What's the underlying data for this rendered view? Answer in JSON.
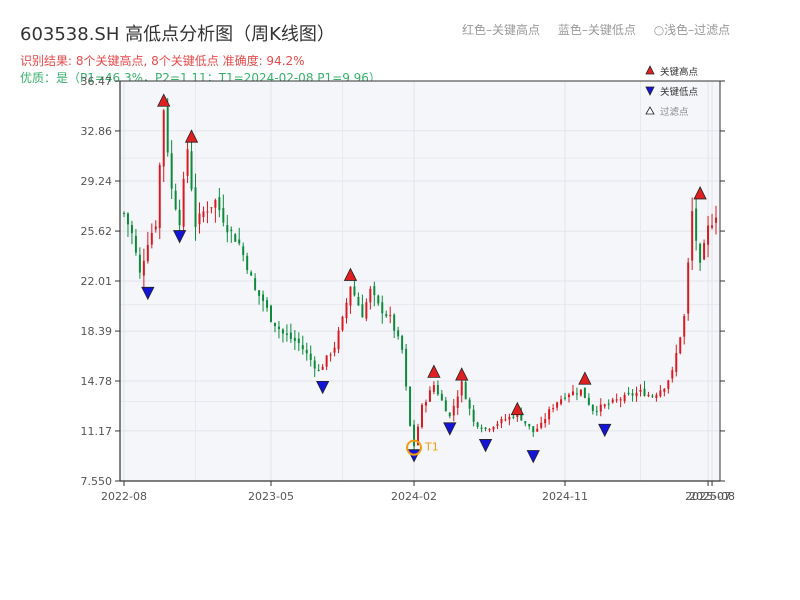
{
  "header": {
    "title": "603538.SH 高低点分析图（周K线图）",
    "legend_red": "红色–关键高点",
    "legend_blue": "蓝色–关键低点",
    "legend_circle": "○浅色–过滤点",
    "result_line": "识别结果: 8个关键高点, 8个关键低点   准确度: 94.2%",
    "quality_line": "优质：是（P1=46.3%，P2=1.11；T1=2024-02-08 P1=9.96）"
  },
  "legend": {
    "high": "关键高点",
    "low": "关键低点",
    "filtered": "过滤点"
  },
  "colors": {
    "up": "#d71920",
    "down": "#0b8a3a",
    "high_marker": "#e02020",
    "low_marker": "#1414d8",
    "t1": "#f39c12"
  },
  "chart_data": {
    "type": "candlestick",
    "ylim": [
      7.55,
      36.47
    ],
    "y_ticks": [
      "7.550",
      "11.17",
      "14.78",
      "18.39",
      "22.01",
      "25.62",
      "29.24",
      "32.86",
      "36.47"
    ],
    "y_tick_values": [
      7.55,
      11.17,
      14.78,
      18.39,
      22.01,
      25.62,
      29.24,
      32.86,
      36.47
    ],
    "x_ticks": [
      "2022-08",
      "2023-05",
      "2024-02",
      "2024-11",
      "2025-07",
      "2025-08"
    ],
    "x_tick_weeks": [
      0,
      37,
      73,
      111,
      147,
      148
    ],
    "weeks": 150,
    "anchors": [
      [
        0,
        26.9
      ],
      [
        2,
        25.4
      ],
      [
        4,
        22.5
      ],
      [
        6,
        24.9
      ],
      [
        8,
        26.2
      ],
      [
        10,
        34.5
      ],
      [
        12,
        28.6
      ],
      [
        14,
        26.4
      ],
      [
        16,
        31.6
      ],
      [
        18,
        26.1
      ],
      [
        20,
        27.0
      ],
      [
        23,
        27.8
      ],
      [
        26,
        25.9
      ],
      [
        29,
        24.7
      ],
      [
        31,
        23.1
      ],
      [
        33,
        21.3
      ],
      [
        35,
        20.6
      ],
      [
        37,
        19.3
      ],
      [
        40,
        18.2
      ],
      [
        44,
        17.5
      ],
      [
        49,
        15.5
      ],
      [
        53,
        17.3
      ],
      [
        55,
        19.2
      ],
      [
        57,
        21.7
      ],
      [
        60,
        19.6
      ],
      [
        62,
        21.3
      ],
      [
        64,
        20.2
      ],
      [
        67,
        19.3
      ],
      [
        70,
        17.0
      ],
      [
        72,
        11.5
      ],
      [
        73,
        10.1
      ],
      [
        75,
        12.9
      ],
      [
        78,
        14.5
      ],
      [
        82,
        12.2
      ],
      [
        85,
        14.6
      ],
      [
        88,
        11.8
      ],
      [
        91,
        11.3
      ],
      [
        95,
        11.9
      ],
      [
        99,
        12.4
      ],
      [
        103,
        11.1
      ],
      [
        105,
        11.6
      ],
      [
        107,
        12.6
      ],
      [
        109,
        13.3
      ],
      [
        112,
        13.9
      ],
      [
        115,
        14.1
      ],
      [
        118,
        12.7
      ],
      [
        121,
        13.0
      ],
      [
        125,
        13.5
      ],
      [
        130,
        14.0
      ],
      [
        133,
        13.7
      ],
      [
        136,
        14.4
      ],
      [
        138,
        15.4
      ],
      [
        141,
        19.4
      ],
      [
        143,
        27.0
      ],
      [
        145,
        23.0
      ],
      [
        147,
        25.8
      ],
      [
        149,
        26.9
      ]
    ],
    "key_highs": [
      {
        "week": 10,
        "price": 34.5
      },
      {
        "week": 17,
        "price": 31.9
      },
      {
        "week": 57,
        "price": 21.9
      },
      {
        "week": 78,
        "price": 14.9
      },
      {
        "week": 85,
        "price": 14.7
      },
      {
        "week": 99,
        "price": 12.2
      },
      {
        "week": 116,
        "price": 14.4
      },
      {
        "week": 145,
        "price": 27.8
      }
    ],
    "key_lows": [
      {
        "week": 6,
        "price": 21.7
      },
      {
        "week": 14,
        "price": 25.8
      },
      {
        "week": 50,
        "price": 14.9
      },
      {
        "week": 73,
        "price": 9.96
      },
      {
        "week": 82,
        "price": 11.9
      },
      {
        "week": 91,
        "price": 10.7
      },
      {
        "week": 103,
        "price": 9.9
      },
      {
        "week": 121,
        "price": 11.8
      }
    ],
    "t1": {
      "week": 73,
      "price": 9.96,
      "label": "T1"
    }
  }
}
